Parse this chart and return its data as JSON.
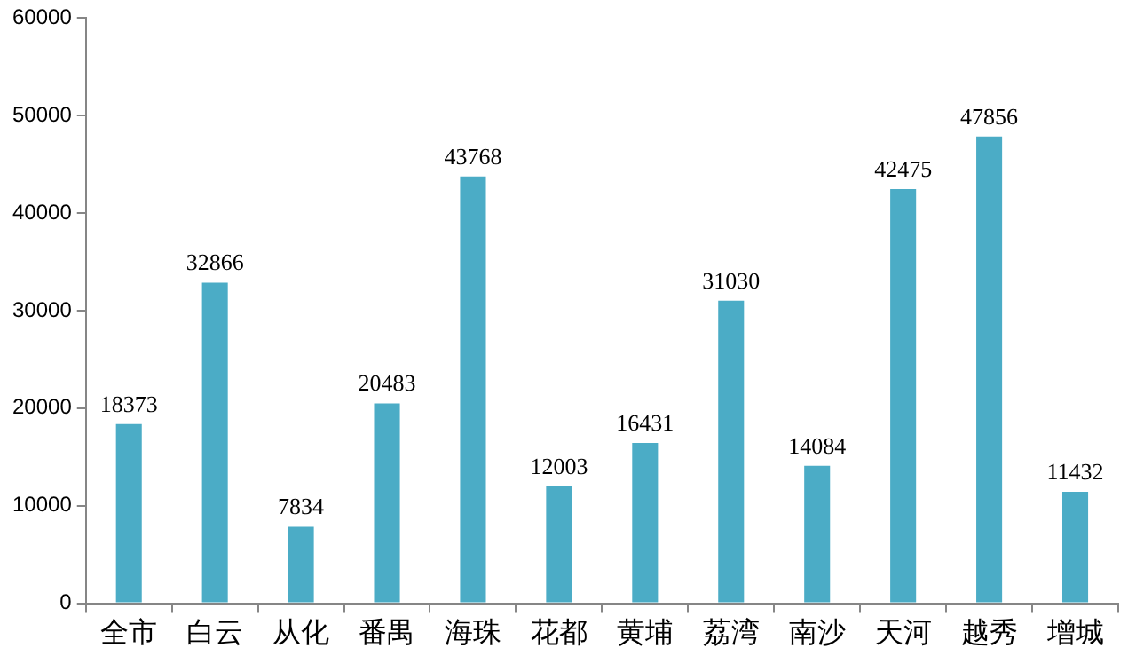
{
  "chart_data": {
    "type": "bar",
    "categories": [
      "全市",
      "白云",
      "从化",
      "番禺",
      "海珠",
      "花都",
      "黄埔",
      "荔湾",
      "南沙",
      "天河",
      "越秀",
      "增城"
    ],
    "values": [
      18373,
      32866,
      7834,
      20483,
      43768,
      12003,
      16431,
      31030,
      14084,
      42475,
      47856,
      11432
    ],
    "color": "#4bacc6",
    "ylim": [
      0,
      60000
    ],
    "yticks": [
      0,
      10000,
      20000,
      30000,
      40000,
      50000,
      60000
    ],
    "grid": false,
    "legend": false,
    "data_labels": true
  }
}
